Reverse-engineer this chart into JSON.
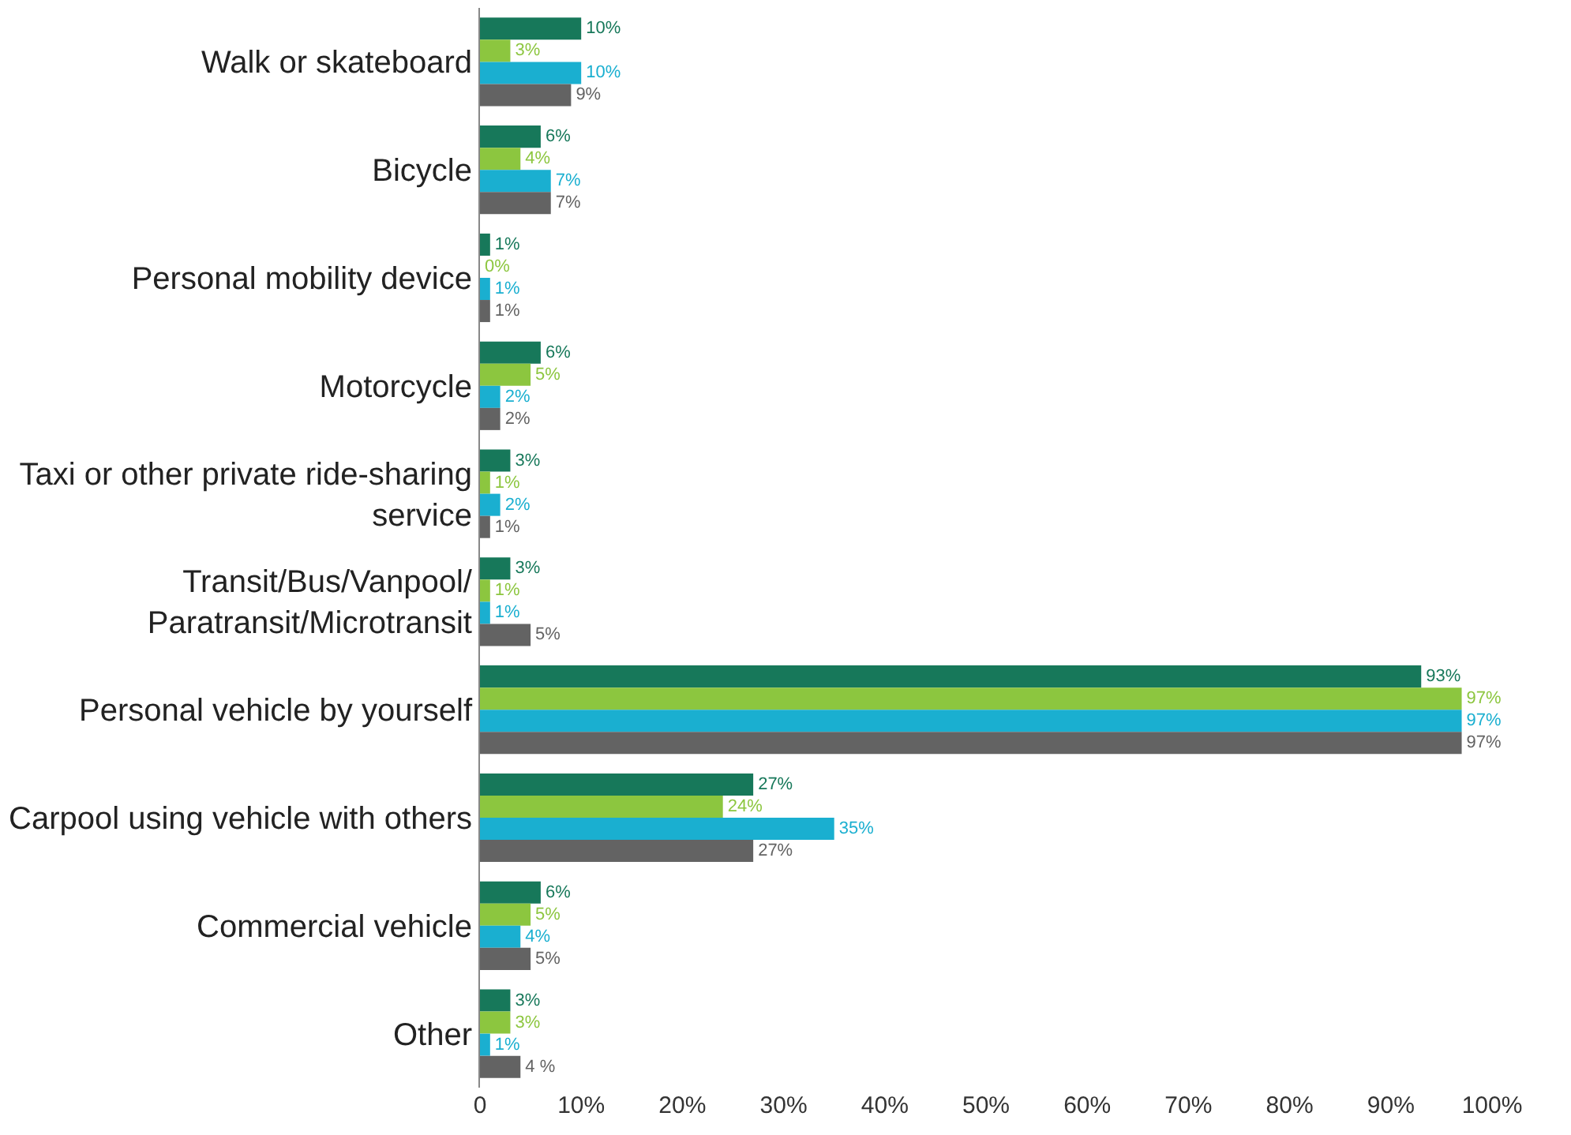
{
  "chart_data": {
    "type": "bar",
    "orientation": "horizontal",
    "categories": [
      "Walk or skateboard",
      "Bicycle",
      "Personal mobility device",
      "Motorcycle",
      "Taxi or other private ride-sharing\nservice",
      "Transit/Bus/Vanpool/\nParatransit/Microtransit",
      "Personal vehicle by yourself",
      "Carpool using vehicle with others",
      "Commercial vehicle",
      "Other"
    ],
    "series": [
      {
        "color": "#17785a",
        "values": [
          10,
          6,
          1,
          6,
          3,
          3,
          93,
          27,
          6,
          3
        ],
        "value_labels": [
          "10%",
          "6%",
          "1%",
          "6%",
          "3%",
          "3%",
          "93%",
          "27%",
          "6%",
          "3%"
        ]
      },
      {
        "color": "#8cc63f",
        "values": [
          3,
          4,
          0,
          5,
          1,
          1,
          97,
          24,
          5,
          3
        ],
        "value_labels": [
          "3%",
          "4%",
          "0%",
          "5%",
          "1%",
          "1%",
          "97%",
          "24%",
          "5%",
          "3%"
        ]
      },
      {
        "color": "#1aafd0",
        "values": [
          10,
          7,
          1,
          2,
          2,
          1,
          97,
          35,
          4,
          1
        ],
        "value_labels": [
          "10%",
          "7%",
          "1%",
          "2%",
          "2%",
          "1%",
          "97%",
          "35%",
          "4%",
          "1%"
        ]
      },
      {
        "color": "#636363",
        "values": [
          9,
          7,
          1,
          2,
          1,
          5,
          97,
          27,
          5,
          4
        ],
        "value_labels": [
          "9%",
          "7%",
          "1%",
          "2%",
          "1%",
          "5%",
          "97%",
          "27%",
          "5%",
          "4 %"
        ]
      }
    ],
    "xlim": [
      0,
      100
    ],
    "xticks": [
      0,
      {
        "value": 10,
        "label": "10%"
      },
      {
        "value": 20,
        "label": "20%"
      },
      {
        "value": 30,
        "label": "30%"
      },
      {
        "value": 40,
        "label": "40%"
      },
      {
        "value": 50,
        "label": "50%"
      },
      {
        "value": 60,
        "label": "60%"
      },
      {
        "value": 70,
        "label": "70%"
      },
      {
        "value": 80,
        "label": "80%"
      },
      {
        "value": 90,
        "label": "90%"
      },
      {
        "value": 100,
        "label": "100%"
      }
    ],
    "tick_labels": true
  }
}
